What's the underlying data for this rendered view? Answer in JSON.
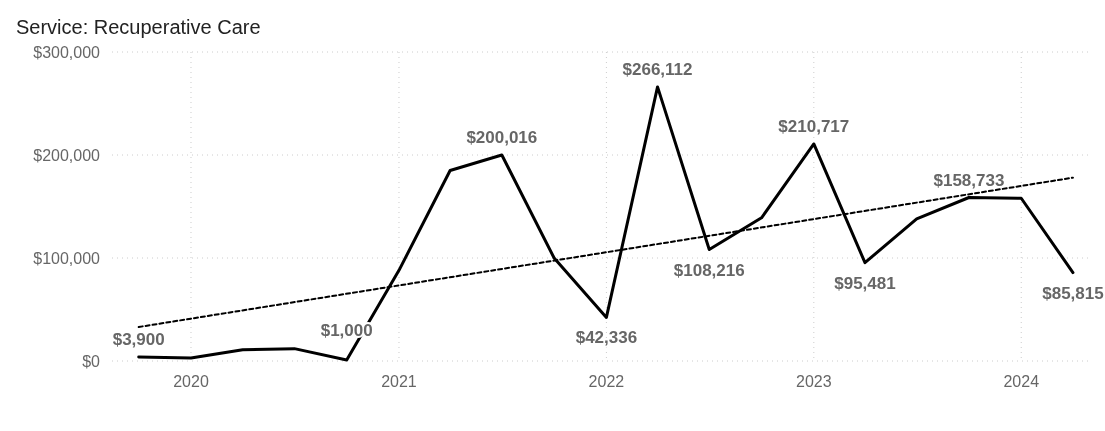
{
  "chart_data": {
    "type": "line",
    "title": "Service: Recuperative Care",
    "x": [
      "2019-10",
      "2020-01",
      "2020-04",
      "2020-07",
      "2020-10",
      "2021-01",
      "2021-04",
      "2021-07",
      "2021-10",
      "2022-01",
      "2022-04",
      "2022-07",
      "2022-10",
      "2023-01",
      "2023-04",
      "2023-07",
      "2023-10",
      "2024-01",
      "2024-04"
    ],
    "series": [
      {
        "color": "#000000",
        "values": [
          3900,
          3000,
          11000,
          12000,
          1000,
          88000,
          185000,
          200016,
          100000,
          42336,
          266112,
          108216,
          139000,
          210717,
          95481,
          138000,
          158733,
          158000,
          85815
        ],
        "value_labels": [
          "$3,900",
          null,
          null,
          null,
          "$1,000",
          null,
          null,
          "$200,016",
          null,
          "$42,336",
          "$266,112",
          "$108,216",
          null,
          "$210,717",
          "$95,481",
          null,
          "$158,733",
          null,
          "$85,815"
        ]
      },
      {
        "type": "line",
        "color": "#000000",
        "line_style": "dashed",
        "x": [
          "2019-10",
          "2024-04"
        ],
        "values": [
          33000,
          178000
        ]
      }
    ],
    "xlim": [
      "2019-08-15",
      "2024-05-01"
    ],
    "xticks": [
      {
        "value": "2020",
        "label": "2020"
      },
      {
        "value": "2021",
        "label": "2021"
      },
      {
        "value": "2022",
        "label": "2022"
      },
      {
        "value": "2023",
        "label": "2023"
      },
      {
        "value": "2024",
        "label": "2024"
      }
    ],
    "ylim": [
      0,
      300000
    ],
    "yticks": [
      {
        "value": 0,
        "label": "$0"
      },
      {
        "value": 100000,
        "label": "$100,000"
      },
      {
        "value": 200000,
        "label": "$200,000"
      },
      {
        "value": 300000,
        "label": "$300,000"
      }
    ],
    "grid": true,
    "marker": "none",
    "line_style": "solid"
  }
}
